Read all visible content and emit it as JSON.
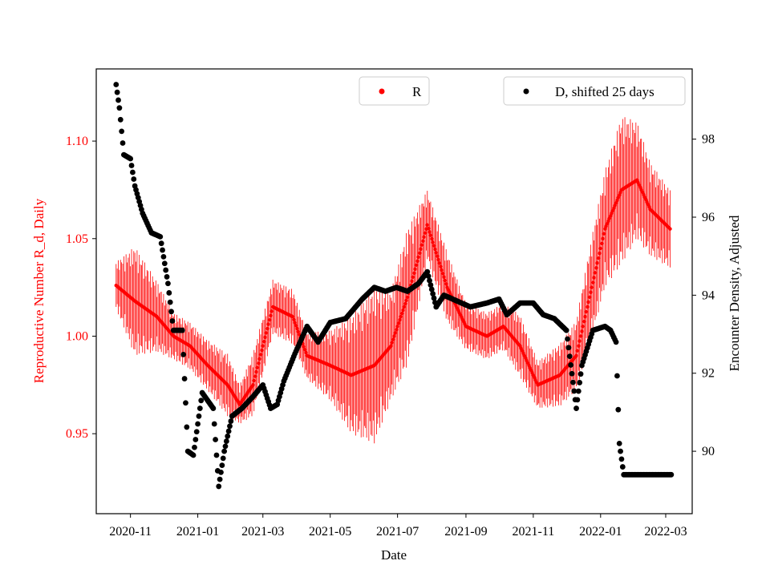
{
  "chart_data": {
    "type": "scatter",
    "xlabel": "Date",
    "ylabel_left": "Reproductive Number R_d, Daily",
    "ylabel_right": "Encounter Density, Adjusted",
    "x_range": [
      "2020-10-01",
      "2022-03-25"
    ],
    "x_ticks": [
      "2020-11",
      "2021-01",
      "2021-03",
      "2021-05",
      "2021-07",
      "2021-09",
      "2021-11",
      "2022-01",
      "2022-03"
    ],
    "y_left": {
      "range": [
        0.909,
        1.137
      ],
      "ticks": [
        0.95,
        1.0,
        1.05,
        1.1
      ],
      "tick_labels": [
        "0.95",
        "1.00",
        "1.05",
        "1.10"
      ]
    },
    "y_right": {
      "range": [
        88.4,
        99.8
      ],
      "ticks": [
        90,
        92,
        94,
        96,
        98
      ],
      "tick_labels": [
        "90",
        "92",
        "94",
        "96",
        "98"
      ]
    },
    "colors": {
      "R": "#ff0000",
      "D": "#000000",
      "axis": "#000000"
    },
    "series": [
      {
        "name": "R",
        "legend_label": "R",
        "axis": "left",
        "style": "red points with error bars",
        "dates": [
          "2020-10-19",
          "2020-11-05",
          "2020-11-25",
          "2020-12-10",
          "2020-12-25",
          "2021-01-10",
          "2021-01-28",
          "2021-02-08",
          "2021-02-20",
          "2021-03-10",
          "2021-03-28",
          "2021-04-10",
          "2021-05-01",
          "2021-05-20",
          "2021-06-10",
          "2021-06-25",
          "2021-07-10",
          "2021-07-28",
          "2021-08-15",
          "2021-09-01",
          "2021-09-20",
          "2021-10-05",
          "2021-10-20",
          "2021-11-05",
          "2021-11-25",
          "2021-12-10",
          "2021-12-22",
          "2022-01-05",
          "2022-01-20",
          "2022-02-03",
          "2022-02-15",
          "2022-03-05"
        ],
        "values": [
          1.026,
          1.018,
          1.01,
          1.0,
          0.995,
          0.985,
          0.975,
          0.965,
          0.975,
          1.015,
          1.01,
          0.99,
          0.985,
          0.98,
          0.985,
          0.995,
          1.02,
          1.057,
          1.025,
          1.005,
          1.0,
          1.005,
          0.995,
          0.975,
          0.98,
          0.99,
          1.02,
          1.055,
          1.075,
          1.08,
          1.065,
          1.055
        ],
        "errors": [
          0.012,
          0.028,
          0.018,
          0.012,
          0.012,
          0.013,
          0.016,
          0.01,
          0.016,
          0.014,
          0.014,
          0.012,
          0.018,
          0.03,
          0.04,
          0.028,
          0.035,
          0.018,
          0.018,
          0.012,
          0.012,
          0.012,
          0.016,
          0.012,
          0.016,
          0.018,
          0.025,
          0.03,
          0.038,
          0.03,
          0.024,
          0.02
        ]
      },
      {
        "name": "D",
        "legend_label": "D, shifted 25 days",
        "axis": "right",
        "style": "black points",
        "dates": [
          "2020-10-19",
          "2020-10-22",
          "2020-10-26",
          "2020-11-01",
          "2020-11-05",
          "2020-11-12",
          "2020-11-20",
          "2020-11-28",
          "2020-12-05",
          "2020-12-10",
          "2020-12-18",
          "2020-12-23",
          "2020-12-28",
          "2021-01-05",
          "2021-01-15",
          "2021-01-20",
          "2021-01-25",
          "2021-02-01",
          "2021-02-10",
          "2021-02-20",
          "2021-03-01",
          "2021-03-08",
          "2021-03-14",
          "2021-03-20",
          "2021-03-30",
          "2021-04-10",
          "2021-04-20",
          "2021-05-01",
          "2021-05-15",
          "2021-05-30",
          "2021-06-10",
          "2021-06-20",
          "2021-06-30",
          "2021-07-10",
          "2021-07-20",
          "2021-07-28",
          "2021-08-05",
          "2021-08-12",
          "2021-08-20",
          "2021-09-05",
          "2021-09-20",
          "2021-10-01",
          "2021-10-08",
          "2021-10-20",
          "2021-11-01",
          "2021-11-10",
          "2021-11-20",
          "2021-12-01",
          "2021-12-10",
          "2021-12-15",
          "2021-12-25",
          "2022-01-05",
          "2022-01-10",
          "2022-01-15",
          "2022-01-18",
          "2022-01-22",
          "2022-02-01",
          "2022-02-20",
          "2022-03-06"
        ],
        "values": [
          99.4,
          98.8,
          97.6,
          97.5,
          96.8,
          96.1,
          95.6,
          95.5,
          94.3,
          93.1,
          93.1,
          90.0,
          89.9,
          91.5,
          91.1,
          89.1,
          90.0,
          90.9,
          91.1,
          91.4,
          91.7,
          91.1,
          91.2,
          91.8,
          92.5,
          93.2,
          92.8,
          93.3,
          93.4,
          93.9,
          94.2,
          94.1,
          94.2,
          94.1,
          94.3,
          94.6,
          93.7,
          94.0,
          93.9,
          93.7,
          93.8,
          93.9,
          93.5,
          93.8,
          93.8,
          93.5,
          93.4,
          93.1,
          91.1,
          92.2,
          93.1,
          93.2,
          93.1,
          92.8,
          90.2,
          89.4,
          89.4,
          89.4,
          89.4
        ]
      }
    ]
  }
}
